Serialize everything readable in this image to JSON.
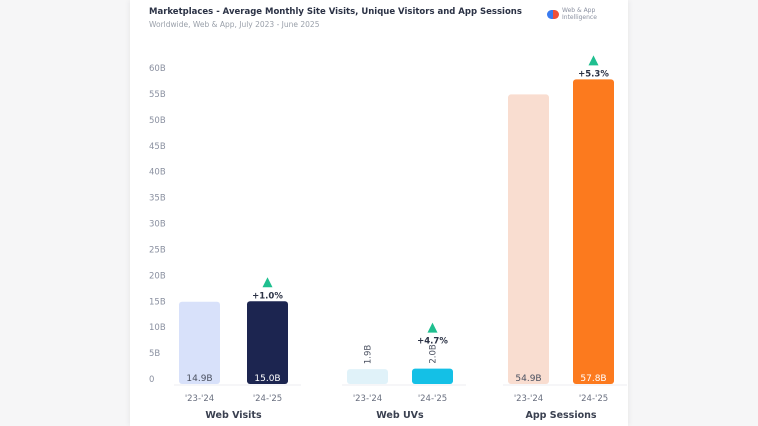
{
  "header": {
    "title": "Marketplaces - Average Monthly Site Visits, Unique Visitors and App Sessions",
    "subtitle": "Worldwide, Web & App, July 2023 - June 2025",
    "logo_line1": "Web & App",
    "logo_line2": "Intelligence"
  },
  "chart_data": {
    "type": "bar",
    "ylim": [
      0,
      60
    ],
    "y_ticks": [
      "0",
      "5B",
      "10B",
      "15B",
      "20B",
      "25B",
      "30B",
      "35B",
      "40B",
      "45B",
      "50B",
      "55B",
      "60B"
    ],
    "grid": false,
    "groups": [
      {
        "name": "Web Visits",
        "categories": [
          "'23-'24",
          "'24-'25"
        ],
        "values": [
          14.9,
          15.0
        ],
        "labels": [
          "14.9B",
          "15.0B"
        ],
        "change": "+1.0%",
        "colors": [
          "#d8e1fa",
          "#1c2550"
        ]
      },
      {
        "name": "Web UVs",
        "categories": [
          "'23-'24",
          "'24-'25"
        ],
        "values": [
          1.9,
          2.0
        ],
        "labels": [
          "1.9B",
          "2.0B"
        ],
        "change": "+4.7%",
        "colors": [
          "#e0f2f9",
          "#14c0e6"
        ]
      },
      {
        "name": "App Sessions",
        "categories": [
          "'23-'24",
          "'24-'25"
        ],
        "values": [
          54.9,
          57.8
        ],
        "labels": [
          "54.9B",
          "57.8B"
        ],
        "change": "+5.3%",
        "colors": [
          "#f9ddd0",
          "#fc7a1e"
        ]
      }
    ],
    "change_color": "#1fbf8f"
  }
}
